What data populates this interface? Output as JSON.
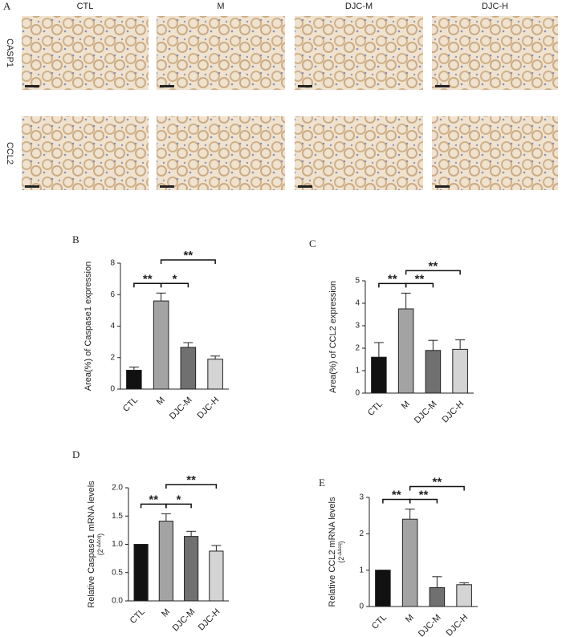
{
  "micrographs": {
    "panel": "A",
    "columns": [
      "CTL",
      "M",
      "DJC-M",
      "DJC-H"
    ],
    "rows": [
      "CASP1",
      "CCL2"
    ]
  },
  "chart_data": [
    {
      "type": "bar",
      "panel": "B",
      "ylabel": "Area(%) of Caspase1 expression",
      "categories": [
        "CTL",
        "M",
        "DJC-M",
        "DJC-H"
      ],
      "values": [
        1.2,
        5.6,
        2.65,
        1.9
      ],
      "errors": [
        0.2,
        0.5,
        0.3,
        0.2
      ],
      "colors": [
        "#111111",
        "#a3a3a3",
        "#707070",
        "#d4d4d4"
      ],
      "ylim": [
        0,
        8
      ],
      "yticks": [
        0,
        2,
        4,
        6,
        8
      ],
      "comparisons": [
        {
          "label": "**",
          "pair": [
            0,
            1
          ]
        },
        {
          "label": "*",
          "pair": [
            1,
            2
          ]
        },
        {
          "label": "**",
          "pair": [
            1,
            3
          ]
        }
      ]
    },
    {
      "type": "bar",
      "panel": "C",
      "ylabel": "Area(%) of CCL2 expression",
      "categories": [
        "CTL",
        "M",
        "DJC-M",
        "DJC-H"
      ],
      "values": [
        1.6,
        3.75,
        1.9,
        1.95
      ],
      "errors": [
        0.65,
        0.7,
        0.45,
        0.42
      ],
      "colors": [
        "#111111",
        "#a3a3a3",
        "#707070",
        "#d4d4d4"
      ],
      "ylim": [
        0,
        5
      ],
      "yticks": [
        0,
        1,
        2,
        3,
        4,
        5
      ],
      "comparisons": [
        {
          "label": "**",
          "pair": [
            0,
            1
          ]
        },
        {
          "label": "**",
          "pair": [
            1,
            2
          ]
        },
        {
          "label": "**",
          "pair": [
            1,
            3
          ]
        }
      ]
    },
    {
      "type": "bar",
      "panel": "D",
      "ylabel": "Relative Caspase1 mRNA levels",
      "ylabel_formula": [
        "(2",
        "-ΔΔcq",
        ")"
      ],
      "categories": [
        "CTL",
        "M",
        "DJC-M",
        "DJC-H"
      ],
      "values": [
        1.0,
        1.41,
        1.14,
        0.88
      ],
      "errors": [
        0,
        0.13,
        0.09,
        0.1
      ],
      "colors": [
        "#111111",
        "#a3a3a3",
        "#707070",
        "#d4d4d4"
      ],
      "ylim": [
        0,
        2
      ],
      "yticks": [
        {
          "value": 0,
          "label": "0.0"
        },
        {
          "value": 0.5,
          "label": "0.5"
        },
        {
          "value": 1,
          "label": "1.0"
        },
        {
          "value": 1.5,
          "label": "1.5"
        },
        {
          "value": 2,
          "label": "2.0"
        }
      ],
      "comparisons": [
        {
          "label": "**",
          "pair": [
            0,
            1
          ]
        },
        {
          "label": "*",
          "pair": [
            1,
            2
          ]
        },
        {
          "label": "**",
          "pair": [
            1,
            3
          ]
        }
      ]
    },
    {
      "type": "bar",
      "panel": "E",
      "ylabel": "Relative CCL2 mRNA levels",
      "ylabel_formula": [
        "(2",
        "-ΔΔcq",
        ")"
      ],
      "categories": [
        "CTL",
        "M",
        "DJC-M",
        "DJC-H"
      ],
      "values": [
        1.0,
        2.4,
        0.52,
        0.6
      ],
      "errors": [
        0,
        0.28,
        0.3,
        0.05
      ],
      "colors": [
        "#111111",
        "#a3a3a3",
        "#707070",
        "#d4d4d4"
      ],
      "ylim": [
        0,
        3
      ],
      "yticks": [
        0,
        1,
        2,
        3
      ],
      "comparisons": [
        {
          "label": "**",
          "pair": [
            0,
            1
          ]
        },
        {
          "label": "**",
          "pair": [
            1,
            2
          ]
        },
        {
          "label": "**",
          "pair": [
            1,
            3
          ]
        }
      ]
    }
  ]
}
